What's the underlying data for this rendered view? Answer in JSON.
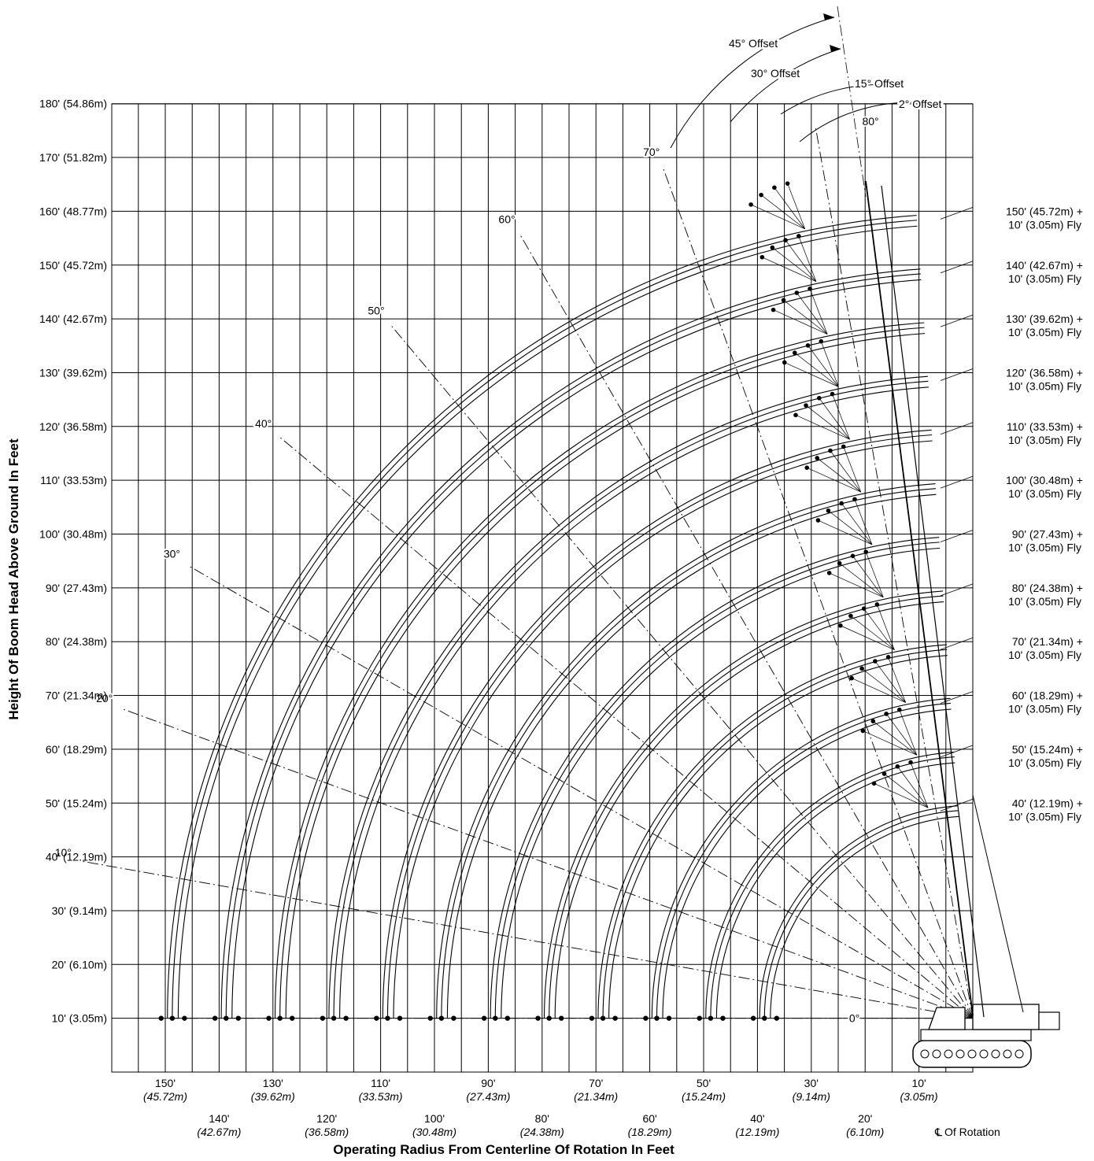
{
  "chart_data": {
    "type": "diagram",
    "kind": "crane boom range diagram",
    "xlabel": "Operating Radius From Centerline Of Rotation In Feet",
    "ylabel": "Height Of Boom Head Above Ground In Feet",
    "xlim": [
      0,
      160
    ],
    "ylim": [
      0,
      180
    ],
    "x_ticks": [
      {
        "ft": 150,
        "label": "150'",
        "metric": "(45.72m)",
        "row": 1
      },
      {
        "ft": 140,
        "label": "140'",
        "metric": "(42.67m)",
        "row": 2
      },
      {
        "ft": 130,
        "label": "130'",
        "metric": "(39.62m)",
        "row": 1
      },
      {
        "ft": 120,
        "label": "120'",
        "metric": "(36.58m)",
        "row": 2
      },
      {
        "ft": 110,
        "label": "110'",
        "metric": "(33.53m)",
        "row": 1
      },
      {
        "ft": 100,
        "label": "100'",
        "metric": "(30.48m)",
        "row": 2
      },
      {
        "ft": 90,
        "label": "90'",
        "metric": "(27.43m)",
        "row": 1
      },
      {
        "ft": 80,
        "label": "80'",
        "metric": "(24.38m)",
        "row": 2
      },
      {
        "ft": 70,
        "label": "70'",
        "metric": "(21.34m)",
        "row": 1
      },
      {
        "ft": 60,
        "label": "60'",
        "metric": "(18.29m)",
        "row": 2
      },
      {
        "ft": 50,
        "label": "50'",
        "metric": "(15.24m)",
        "row": 1
      },
      {
        "ft": 40,
        "label": "40'",
        "metric": "(12.19m)",
        "row": 2
      },
      {
        "ft": 30,
        "label": "30'",
        "metric": "(9.14m)",
        "row": 1
      },
      {
        "ft": 20,
        "label": "20'",
        "metric": "(6.10m)",
        "row": 2
      },
      {
        "ft": 10,
        "label": "10'",
        "metric": "(3.05m)",
        "row": 1
      }
    ],
    "y_ticks": [
      {
        "ft": 180,
        "label": "180'",
        "metric": "(54.86m)"
      },
      {
        "ft": 170,
        "label": "170'",
        "metric": "(51.82m)"
      },
      {
        "ft": 160,
        "label": "160'",
        "metric": "(48.77m)"
      },
      {
        "ft": 150,
        "label": "150'",
        "metric": "(45.72m)"
      },
      {
        "ft": 140,
        "label": "140'",
        "metric": "(42.67m)"
      },
      {
        "ft": 130,
        "label": "130'",
        "metric": "(39.62m)"
      },
      {
        "ft": 120,
        "label": "120'",
        "metric": "(36.58m)"
      },
      {
        "ft": 110,
        "label": "110'",
        "metric": "(33.53m)"
      },
      {
        "ft": 100,
        "label": "100'",
        "metric": "(30.48m)"
      },
      {
        "ft": 90,
        "label": "90'",
        "metric": "(27.43m)"
      },
      {
        "ft": 80,
        "label": "80'",
        "metric": "(24.38m)"
      },
      {
        "ft": 70,
        "label": "70'",
        "metric": "(21.34m)"
      },
      {
        "ft": 60,
        "label": "60'",
        "metric": "(18.29m)"
      },
      {
        "ft": 50,
        "label": "50'",
        "metric": "(15.24m)"
      },
      {
        "ft": 40,
        "label": "40'",
        "metric": "(12.19m)"
      },
      {
        "ft": 30,
        "label": "30'",
        "metric": "(9.14m)"
      },
      {
        "ft": 20,
        "label": "20'",
        "metric": "(6.10m)"
      },
      {
        "ft": 10,
        "label": "10'",
        "metric": "(3.05m)"
      }
    ],
    "pivot": {
      "radius_ft": 0,
      "height_ft": 10
    },
    "boom_configs": [
      {
        "boom": "150'",
        "boom_metric": "(45.72m)",
        "fly": "10'",
        "fly_metric": "(3.05m)",
        "tip_ft": 160
      },
      {
        "boom": "140'",
        "boom_metric": "(42.67m)",
        "fly": "10'",
        "fly_metric": "(3.05m)",
        "tip_ft": 150
      },
      {
        "boom": "130'",
        "boom_metric": "(39.62m)",
        "fly": "10'",
        "fly_metric": "(3.05m)",
        "tip_ft": 140
      },
      {
        "boom": "120'",
        "boom_metric": "(36.58m)",
        "fly": "10'",
        "fly_metric": "(3.05m)",
        "tip_ft": 130
      },
      {
        "boom": "110'",
        "boom_metric": "(33.53m)",
        "fly": "10'",
        "fly_metric": "(3.05m)",
        "tip_ft": 120
      },
      {
        "boom": "100'",
        "boom_metric": "(30.48m)",
        "fly": "10'",
        "fly_metric": "(3.05m)",
        "tip_ft": 110
      },
      {
        "boom": "90'",
        "boom_metric": "(27.43m)",
        "fly": "10'",
        "fly_metric": "(3.05m)",
        "tip_ft": 100
      },
      {
        "boom": "80'",
        "boom_metric": "(24.38m)",
        "fly": "10'",
        "fly_metric": "(3.05m)",
        "tip_ft": 90
      },
      {
        "boom": "70'",
        "boom_metric": "(21.34m)",
        "fly": "10'",
        "fly_metric": "(3.05m)",
        "tip_ft": 80
      },
      {
        "boom": "60'",
        "boom_metric": "(18.29m)",
        "fly": "10'",
        "fly_metric": "(3.05m)",
        "tip_ft": 70
      },
      {
        "boom": "50'",
        "boom_metric": "(15.24m)",
        "fly": "10'",
        "fly_metric": "(3.05m)",
        "tip_ft": 60
      },
      {
        "boom": "40'",
        "boom_metric": "(12.19m)",
        "fly": "10'",
        "fly_metric": "(3.05m)",
        "tip_ft": 50
      }
    ],
    "fly_word": "Fly",
    "plus": "+",
    "boom_angles": [
      {
        "deg": 0,
        "label": "0°"
      },
      {
        "deg": 10,
        "label": "10°"
      },
      {
        "deg": 20,
        "label": "20°"
      },
      {
        "deg": 30,
        "label": "30°"
      },
      {
        "deg": 40,
        "label": "40°"
      },
      {
        "deg": 50,
        "label": "50°"
      },
      {
        "deg": 60,
        "label": "60°"
      },
      {
        "deg": 70,
        "label": "70°"
      },
      {
        "deg": 80,
        "label": "80°"
      }
    ],
    "offsets": [
      {
        "deg": 2,
        "label": "2° Offset"
      },
      {
        "deg": 15,
        "label": "15° Offset"
      },
      {
        "deg": 30,
        "label": "30° Offset"
      },
      {
        "deg": 45,
        "label": "45° Offset"
      }
    ],
    "centerline_label": "Of Rotation",
    "centerline_symbol": "℄"
  }
}
